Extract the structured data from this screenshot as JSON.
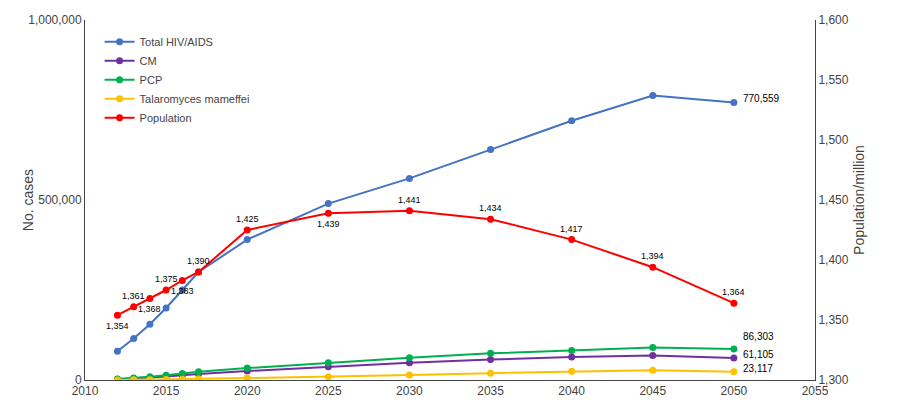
{
  "chart_data": {
    "type": "line",
    "x": [
      2012,
      2013,
      2014,
      2015,
      2016,
      2017,
      2020,
      2025,
      2030,
      2035,
      2040,
      2045,
      2050
    ],
    "xlim": [
      2010,
      2055
    ],
    "xticks": [
      2010,
      2015,
      2020,
      2025,
      2030,
      2035,
      2040,
      2045,
      2050,
      2055
    ],
    "ylabel": "No. cases",
    "ylim": [
      0,
      1000000
    ],
    "yticks": [
      0,
      {
        "value": 500000,
        "label": "500,000"
      },
      {
        "value": 1000000,
        "label": "1,000,000"
      }
    ],
    "y2label": "Population/million",
    "y2lim": [
      1300,
      1600
    ],
    "y2ticks": [
      {
        "value": 1300,
        "label": "1,300"
      },
      {
        "value": 1350,
        "label": "1,350"
      },
      {
        "value": 1400,
        "label": "1,400"
      },
      {
        "value": 1450,
        "label": "1,450"
      },
      {
        "value": 1500,
        "label": "1,500"
      },
      {
        "value": 1550,
        "label": "1,550"
      },
      {
        "value": 1600,
        "label": "1,600"
      }
    ],
    "grid": false,
    "legend": "upper left",
    "marker": "circle",
    "series": [
      {
        "name": "Total HIV/AIDS",
        "color": "#4472C4",
        "values": [
          80000,
          115000,
          155000,
          200000,
          250000,
          300000,
          390000,
          490000,
          560000,
          640000,
          720000,
          790000,
          770559
        ],
        "value_labels": [
          null,
          null,
          null,
          null,
          null,
          null,
          null,
          null,
          null,
          null,
          null,
          null,
          "770,559"
        ]
      },
      {
        "name": "CM",
        "color": "#7030A0",
        "values": [
          2000,
          4000,
          6500,
          9500,
          13000,
          17000,
          25000,
          37000,
          48000,
          57000,
          64000,
          68000,
          61105
        ],
        "value_labels": [
          null,
          null,
          null,
          null,
          null,
          null,
          null,
          null,
          null,
          null,
          null,
          null,
          "61,105"
        ]
      },
      {
        "name": "PCP",
        "color": "#00B050",
        "values": [
          3000,
          5500,
          9000,
          13000,
          18000,
          23000,
          33000,
          48000,
          62000,
          74000,
          82000,
          90000,
          86303
        ],
        "value_labels": [
          null,
          null,
          null,
          null,
          null,
          null,
          null,
          null,
          null,
          null,
          null,
          null,
          "86,303"
        ]
      },
      {
        "name": "Talaromyces mameffei",
        "color": "#FFC000",
        "values": [
          300,
          600,
          1000,
          1500,
          2200,
          3200,
          5500,
          9000,
          14000,
          19000,
          24000,
          27000,
          23117
        ],
        "value_labels": [
          null,
          null,
          null,
          null,
          null,
          null,
          null,
          null,
          null,
          null,
          null,
          null,
          "23,117"
        ]
      },
      {
        "name": "Population",
        "color": "#FF0000",
        "axis": "y2",
        "values": [
          1354,
          1361,
          1368,
          1375,
          1383,
          1390,
          1425,
          1439,
          1441,
          1434,
          1417,
          1394,
          1364
        ],
        "value_labels": [
          "1,354",
          "1,361",
          "1,368",
          "1,375",
          "1,383",
          "1,390",
          "1,425",
          "1,439",
          "1,441",
          "1,434",
          "1,417",
          "1,394",
          "1,364"
        ]
      }
    ]
  }
}
